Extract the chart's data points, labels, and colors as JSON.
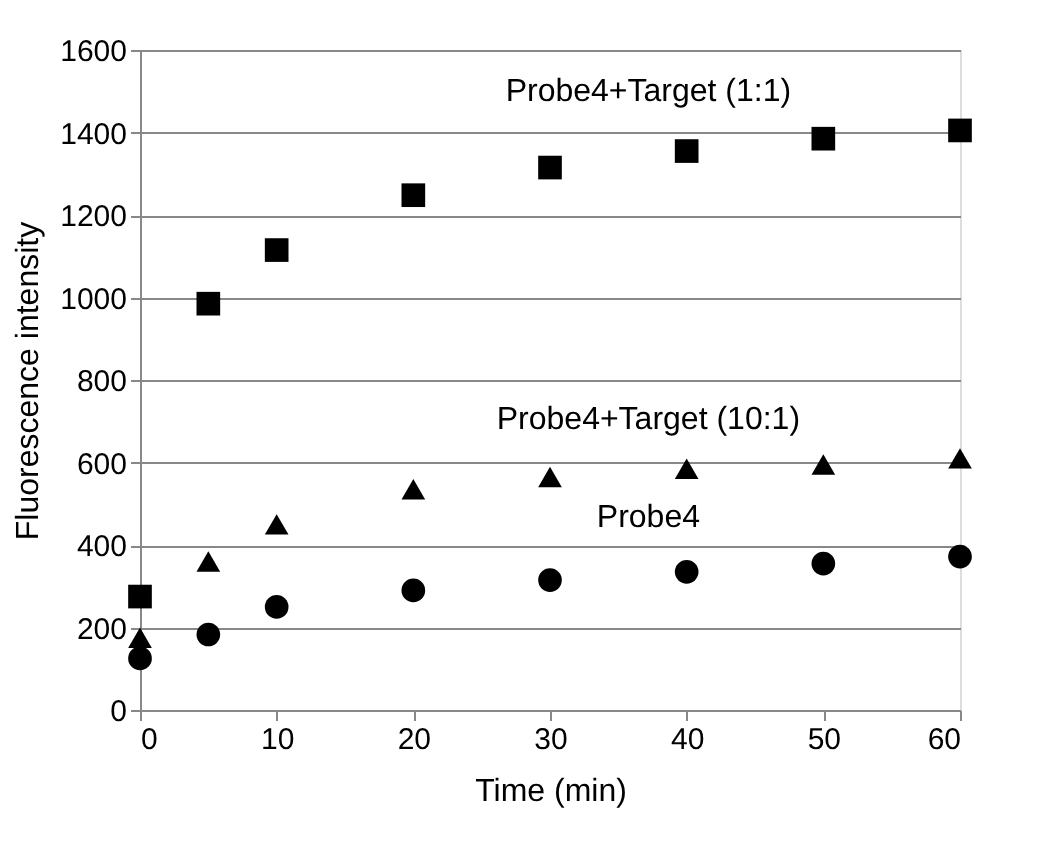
{
  "chart_data": {
    "type": "scatter",
    "xlabel": "Time (min)",
    "ylabel": "Fluorescence intensity",
    "x": [
      0,
      5,
      10,
      20,
      30,
      40,
      50,
      60
    ],
    "series": [
      {
        "name": "Probe4+Target (1:1)",
        "color": "#000000",
        "marker": "square",
        "values": [
          275,
          985,
          1115,
          1248,
          1315,
          1355,
          1385,
          1405
        ]
      },
      {
        "name": "Probe4+Target (10:1)",
        "color": "#000000",
        "marker": "triangle",
        "values": [
          175,
          360,
          450,
          535,
          565,
          585,
          595,
          610
        ]
      },
      {
        "name": "Probe4",
        "color": "#000000",
        "marker": "circle",
        "values": [
          125,
          183,
          250,
          290,
          315,
          335,
          355,
          372
        ]
      }
    ],
    "xlim": [
      0,
      60
    ],
    "xticks": [
      0,
      10,
      20,
      30,
      40,
      50,
      60
    ],
    "ylim": [
      0,
      1600
    ],
    "yticks": [
      0,
      200,
      400,
      600,
      800,
      1000,
      1200,
      1400,
      1600
    ],
    "grid": "y",
    "legend": false
  }
}
